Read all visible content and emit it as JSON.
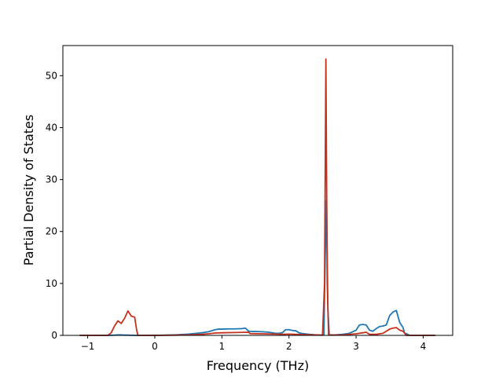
{
  "chart_data": {
    "type": "line",
    "title": "",
    "xlabel": "Frequency (THz)",
    "ylabel": "Partial Density of States",
    "xlim": [
      -1.37,
      4.44
    ],
    "ylim": [
      0,
      55.8
    ],
    "xticks": [
      -1,
      0,
      1,
      2,
      3,
      4
    ],
    "xtick_labels": [
      "−1",
      "0",
      "1",
      "2",
      "3",
      "4"
    ],
    "yticks": [
      0,
      10,
      20,
      30,
      40,
      50
    ],
    "ytick_labels": [
      "0",
      "10",
      "20",
      "30",
      "40",
      "50"
    ],
    "grid": false,
    "legend": false,
    "series": [
      {
        "color": "#1f77b4",
        "x": [
          -1.12,
          -0.7,
          -0.6,
          -0.55,
          -0.5,
          -0.45,
          -0.4,
          -0.35,
          -0.3,
          -0.25,
          0.0,
          0.3,
          0.5,
          0.7,
          0.8,
          0.9,
          0.95,
          1.0,
          1.1,
          1.2,
          1.3,
          1.35,
          1.4,
          1.45,
          1.5,
          1.6,
          1.7,
          1.8,
          1.85,
          1.9,
          1.95,
          2.0,
          2.05,
          2.1,
          2.15,
          2.2,
          2.3,
          2.4,
          2.5,
          2.52,
          2.54,
          2.56,
          2.58,
          2.6,
          2.62,
          2.7,
          2.8,
          2.9,
          3.0,
          3.05,
          3.1,
          3.15,
          3.2,
          3.25,
          3.3,
          3.35,
          3.4,
          3.45,
          3.5,
          3.55,
          3.6,
          3.65,
          3.7,
          3.72,
          3.8,
          4.0,
          4.18
        ],
        "y": [
          0,
          0,
          0.05,
          0.1,
          0.1,
          0.05,
          0.05,
          0.02,
          0,
          0,
          0,
          0.1,
          0.25,
          0.5,
          0.7,
          1.1,
          1.2,
          1.2,
          1.25,
          1.25,
          1.3,
          1.4,
          0.8,
          0.75,
          0.75,
          0.7,
          0.6,
          0.4,
          0.4,
          0.5,
          1.1,
          1.1,
          0.95,
          0.9,
          0.5,
          0.35,
          0.2,
          0.1,
          0.05,
          0.1,
          15,
          26,
          5,
          0.1,
          0.1,
          0.1,
          0.2,
          0.4,
          1.0,
          2.0,
          2.1,
          2.0,
          1.0,
          0.8,
          1.3,
          1.7,
          1.8,
          2.0,
          3.8,
          4.5,
          4.8,
          2.5,
          1.5,
          0.5,
          0,
          0,
          0
        ]
      },
      {
        "color": "#c4321e",
        "x": [
          -1.12,
          -0.7,
          -0.65,
          -0.6,
          -0.55,
          -0.5,
          -0.45,
          -0.4,
          -0.35,
          -0.3,
          -0.27,
          -0.25,
          0.0,
          0.3,
          0.5,
          0.7,
          0.8,
          0.9,
          1.0,
          1.2,
          1.4,
          1.42,
          1.6,
          1.8,
          1.9,
          2.0,
          2.2,
          2.4,
          2.5,
          2.53,
          2.55,
          2.57,
          2.59,
          2.62,
          2.8,
          3.0,
          3.1,
          3.15,
          3.2,
          3.3,
          3.4,
          3.5,
          3.55,
          3.6,
          3.65,
          3.7,
          3.75,
          4.0,
          4.18
        ],
        "y": [
          0,
          0,
          0.5,
          1.8,
          2.8,
          2.3,
          3.3,
          4.7,
          3.7,
          3.5,
          1.0,
          0,
          0,
          0.05,
          0.1,
          0.2,
          0.3,
          0.45,
          0.5,
          0.55,
          0.6,
          0.35,
          0.3,
          0.25,
          0.2,
          0.25,
          0.15,
          0.1,
          0.05,
          10,
          53.2,
          10,
          0.1,
          0.05,
          0.1,
          0.3,
          0.5,
          0.6,
          0.2,
          0.2,
          0.4,
          1.2,
          1.4,
          1.5,
          1.0,
          0.8,
          0,
          0,
          0
        ]
      }
    ]
  }
}
